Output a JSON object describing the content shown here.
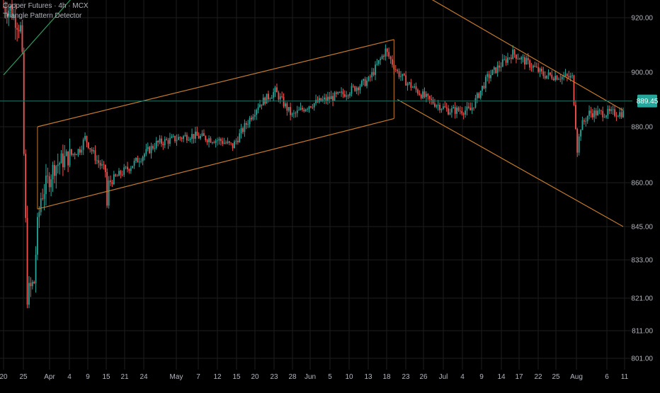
{
  "legend": {
    "symbol_line": "Copper Futures · 4h · MCX",
    "indicator": "Triangle Pattern Detector"
  },
  "colors": {
    "background": "#000000",
    "grid": "#1e1e1e",
    "up": "#26a69a",
    "down": "#ef5350",
    "pattern_line": "#c47a2c",
    "trend_line": "#2e9e5e",
    "current_price_line": "#1f6f62",
    "price_tag_bg": "#26a69a",
    "axis_text": "#b2b5be"
  },
  "chart_data": {
    "type": "candlestick",
    "title": "Copper Futures · 4h · MCX",
    "indicator": "Triangle Pattern Detector",
    "y_ticks": [
      "920.00",
      "900.00",
      "880.00",
      "860.00",
      "845.00",
      "833.00",
      "821.00",
      "811.00",
      "801.00"
    ],
    "x_ticks": [
      "20",
      "25",
      "Apr",
      "4",
      "9",
      "15",
      "21",
      "24",
      "May",
      "7",
      "12",
      "15",
      "20",
      "23",
      "28",
      "Jun",
      "5",
      "10",
      "13",
      "18",
      "23",
      "26",
      "Jul",
      "4",
      "9",
      "14",
      "17",
      "22",
      "25",
      "Aug",
      "6",
      "11"
    ],
    "current_price": "889.45",
    "ylim": [
      801,
      925
    ],
    "path": [
      [
        0,
        924
      ],
      [
        4,
        923
      ],
      [
        10,
        916
      ],
      [
        11,
        904
      ],
      [
        12,
        870
      ],
      [
        14,
        822
      ],
      [
        18,
        826
      ],
      [
        20,
        845
      ],
      [
        22,
        855
      ],
      [
        30,
        866
      ],
      [
        45,
        872
      ],
      [
        48,
        876
      ],
      [
        55,
        868
      ],
      [
        60,
        864
      ],
      [
        61,
        852
      ],
      [
        62,
        860
      ],
      [
        75,
        866
      ],
      [
        90,
        874
      ],
      [
        110,
        877
      ],
      [
        128,
        875
      ],
      [
        135,
        873
      ],
      [
        140,
        878
      ],
      [
        150,
        888
      ],
      [
        160,
        893
      ],
      [
        170,
        884
      ],
      [
        180,
        888
      ],
      [
        200,
        892
      ],
      [
        215,
        897
      ],
      [
        225,
        908
      ],
      [
        232,
        900
      ],
      [
        238,
        896
      ],
      [
        250,
        890
      ],
      [
        262,
        886
      ],
      [
        275,
        886
      ],
      [
        285,
        898
      ],
      [
        300,
        907
      ],
      [
        312,
        902
      ],
      [
        318,
        899
      ],
      [
        335,
        898
      ],
      [
        338,
        872
      ],
      [
        340,
        880
      ],
      [
        345,
        885
      ],
      [
        355,
        885
      ],
      [
        365,
        885
      ]
    ],
    "channel": {
      "upper": [
        [
          20,
          880
        ],
        [
          230,
          912
        ]
      ],
      "lower": [
        [
          20,
          851
        ],
        [
          230,
          883
        ]
      ]
    },
    "triangle": {
      "upper": [
        [
          232,
          934
        ],
        [
          365,
          886
        ]
      ],
      "lower": [
        [
          232,
          890
        ],
        [
          365,
          845
        ]
      ]
    },
    "trendline": [
      [
        0,
        899
      ],
      [
        50,
        934
      ]
    ]
  }
}
